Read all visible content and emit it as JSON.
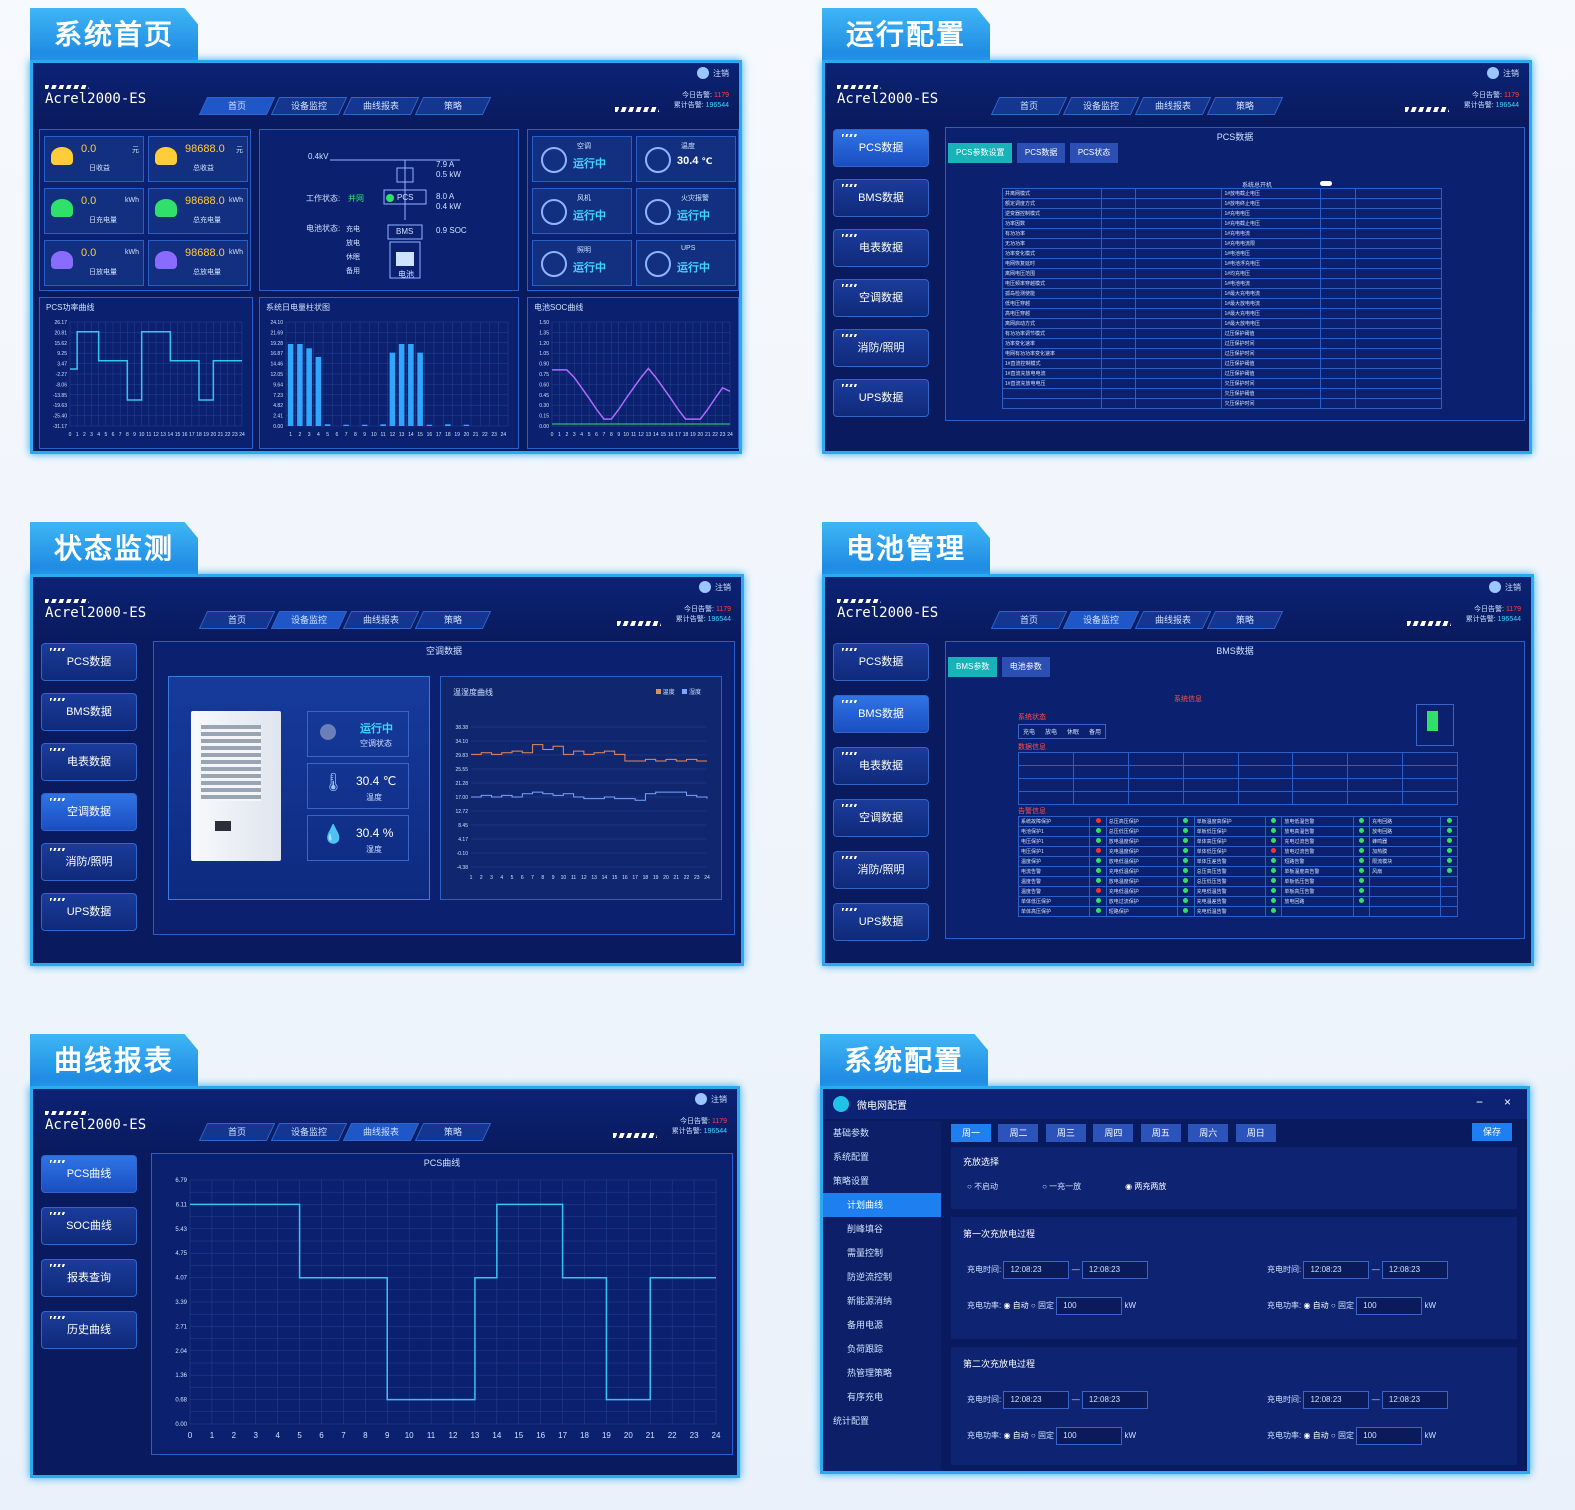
{
  "common": {
    "brand": "Acrel2000-ES",
    "nav": [
      "首页",
      "设备监控",
      "曲线报表",
      "策略"
    ],
    "user": "注销",
    "alarm_today_label": "今日告警:",
    "alarm_today": "1179",
    "alarm_total_label": "累计告警:",
    "alarm_total": "196544",
    "side_menu": [
      "PCS数据",
      "BMS数据",
      "电表数据",
      "空调数据",
      "消防/照明",
      "UPS数据"
    ]
  },
  "s1": {
    "title": "系统首页",
    "stats": [
      {
        "value": "0.0",
        "unit": "元",
        "label": "日收益"
      },
      {
        "value": "98688.0",
        "unit": "元",
        "label": "总收益"
      },
      {
        "value": "0.0",
        "unit": "kWh",
        "label": "日充电量"
      },
      {
        "value": "98688.0",
        "unit": "kWh",
        "label": "总充电量"
      },
      {
        "value": "0.0",
        "unit": "kWh",
        "label": "日放电量"
      },
      {
        "value": "98688.0",
        "unit": "kWh",
        "label": "总放电量"
      }
    ],
    "diagram": {
      "voltage": "0.4kV",
      "work_state_label": "工作状态:",
      "work_state": "并网",
      "pcs": "PCS",
      "battery_state_label": "电池状态:",
      "battery_states": [
        "充电",
        "放电",
        "休眠",
        "备用"
      ],
      "bms": "BMS",
      "battery": "电池",
      "r1": [
        "7.9",
        "A"
      ],
      "r2": [
        "0.5",
        "kW"
      ],
      "r3": [
        "8.0",
        "A"
      ],
      "r4": [
        "0.4",
        "kW"
      ],
      "r5": [
        "0.9",
        "SOC"
      ]
    },
    "devices": [
      {
        "name": "空调",
        "state": "运行中"
      },
      {
        "name": "温度",
        "state": "30.4",
        "unit": "℃"
      },
      {
        "name": "风机",
        "state": "运行中"
      },
      {
        "name": "火灾报警",
        "state": "运行中"
      },
      {
        "name": "照明",
        "state": "运行中"
      },
      {
        "name": "UPS",
        "state": "运行中"
      }
    ],
    "charts": [
      "PCS功率曲线",
      "系统日电量柱状图",
      "电池SOC曲线"
    ]
  },
  "s2": {
    "title": "运行配置",
    "panel": "PCS数据",
    "tabs": [
      "PCS参数设置",
      "PCS数据",
      "PCS状态"
    ],
    "switch_label": "系统总开机",
    "rows_left": [
      "并离网模式",
      "额定调度方式",
      "逆变器控制模式",
      "功率因数",
      "有功功率",
      "无功功率",
      "功率变化模式",
      "电网恢复延时",
      "离网电压范围",
      "电压频率穿越模式",
      "孤岛检测使能",
      "低电压穿越",
      "高电压穿越",
      "离网启动方式",
      "有功功率调节模式",
      "功率变化速率",
      "电网有功功率变化速率",
      "1#直流控制模式",
      "1#直流充放电电流",
      "1#直流充放电电压"
    ],
    "rows_right": [
      "1#放电截止电压",
      "1#放电终止电压",
      "1#充电电压",
      "1#充电截止电压",
      "1#充电电流",
      "1#充电电流限",
      "1#电池电压",
      "1#电池浮充电压",
      "1#均充电压",
      "1#电池电流",
      "1#最大充电电流",
      "1#最大放电电流",
      "1#最大充电电压",
      "1#最大放电电压",
      "过压保护阈值",
      "过压保护时间",
      "过压保护时间",
      "过压保护阈值",
      "过压保护阈值",
      "欠压保护时间",
      "欠压保护阈值",
      "欠压保护时间"
    ]
  },
  "s3": {
    "title": "状态监测",
    "panel": "空调数据",
    "status": "运行中",
    "status_label": "空调状态",
    "temp": "30.4",
    "temp_unit": "℃",
    "temp_label": "温度",
    "hum": "30.4",
    "hum_unit": "%",
    "hum_label": "湿度",
    "chart_title": "温湿度曲线",
    "legend": [
      "温度",
      "湿度"
    ]
  },
  "s4": {
    "title": "电池管理",
    "panel": "BMS数据",
    "tabs": [
      "BMS参数",
      "电池参数"
    ],
    "sys_info": "系统信息",
    "sys_state": "系统状态",
    "data_info": "数据信息",
    "alarm_info": "告警信息",
    "state_items": [
      "充电",
      "放电",
      "休眠",
      "备用"
    ],
    "alarm_cols": [
      [
        "系统故障保护",
        "电池保护1",
        "电压保护1",
        "电压保护1",
        "温度保护",
        "电流告警",
        "温度告警",
        "温度告警",
        "单体低压保护",
        "单体高压保护"
      ],
      [
        "总压高压保护",
        "总压低压保护",
        "放电温度保护",
        "充电温度保护",
        "放电低温保护",
        "充电低温保护",
        "放电温度保护",
        "充电低温保护",
        "放电过流保护",
        "短路保护"
      ],
      [
        "单板温度高保护",
        "单板低压保护",
        "单体高压保护",
        "单体低压保护",
        "单体压差告警",
        "总压高压告警",
        "总压低压告警",
        "充电低温告警",
        "充电温差告警",
        "充电低温告警"
      ],
      [
        "放电低温告警",
        "放电高温告警",
        "充电过流告警",
        "放电过流告警",
        "短路告警",
        "单板温度高告警",
        "单板低压告警",
        "单板高压告警",
        "放电回路"
      ],
      [
        "充电回路",
        "放电回路",
        "蜂鸣器",
        "加热膜",
        "限流模块",
        "风扇"
      ]
    ]
  },
  "s5": {
    "title": "曲线报表",
    "panel": "PCS曲线",
    "side": [
      "PCS曲线",
      "SOC曲线",
      "报表查询",
      "历史曲线"
    ]
  },
  "s6": {
    "title": "系统配置",
    "window_title": "微电网配置",
    "menu": [
      "基础参数",
      "系统配置",
      "策略设置",
      "计划曲线",
      "削峰填谷",
      "需量控制",
      "防逆流控制",
      "新能源消纳",
      "备用电源",
      "负荷跟踪",
      "热管理策略",
      "有序充电",
      "统计配置"
    ],
    "days": [
      "周一",
      "周二",
      "周三",
      "周四",
      "周五",
      "周六",
      "周日"
    ],
    "save": "保存",
    "charge_select": "充放选择",
    "modes": [
      "不启动",
      "一充一放",
      "两充两放"
    ],
    "first": "第一次充放电过程",
    "second": "第二次充放电过程",
    "charge_time": "充电时间:",
    "charge_power": "充电功率:",
    "time_value": "12:08:23",
    "auto": "自动",
    "fixed": "固定",
    "power_value": "100",
    "power_unit": "kW"
  },
  "chart_data": [
    {
      "type": "line",
      "title": "PCS功率曲线",
      "x": [
        0,
        1,
        2,
        3,
        4,
        5,
        6,
        7,
        8,
        9,
        10,
        11,
        12,
        13,
        14,
        15,
        16,
        17,
        18,
        19,
        20,
        21,
        22,
        23,
        24
      ],
      "y": [
        0,
        20.8,
        20.8,
        20.8,
        4.6,
        4.6,
        4.6,
        4.6,
        -17.2,
        -17.2,
        20.8,
        20.8,
        20.8,
        20.8,
        4.6,
        4.6,
        4.6,
        4.6,
        -17.2,
        -17.2,
        4.6,
        4.6,
        4.6,
        4.6,
        4.6
      ],
      "ylim": [
        -31.7,
        26.2
      ],
      "yticks": [
        "26.17",
        "20.81",
        "15.62",
        "9.25",
        "3.47",
        "-2.27",
        "-8.06",
        "-13.85",
        "-19.63",
        "-25.40",
        "-31.17"
      ]
    },
    {
      "type": "bar",
      "title": "系统日电量柱状图",
      "categories": [
        "1",
        "2",
        "3",
        "4",
        "5",
        "6",
        "7",
        "8",
        "9",
        "10",
        "11",
        "12",
        "13",
        "14",
        "15",
        "16",
        "17",
        "18",
        "19",
        "20",
        "21",
        "22",
        "23",
        "24"
      ],
      "values": [
        19,
        19,
        18,
        16,
        0.4,
        0,
        0.3,
        0,
        0.3,
        0,
        0.4,
        17,
        19,
        19,
        17,
        0.3,
        0,
        0.4,
        0,
        0.3,
        0,
        0,
        0,
        0
      ],
      "ylim": [
        0,
        24.1
      ]
    },
    {
      "type": "line",
      "title": "电池SOC曲线",
      "x": [
        0,
        1,
        2,
        3,
        4,
        5,
        6,
        7,
        8,
        9,
        10,
        11,
        12,
        13,
        14,
        15,
        16,
        17,
        18,
        19,
        20,
        21,
        22,
        23,
        24
      ],
      "y": [
        0.81,
        0.81,
        0.81,
        0.7,
        0.55,
        0.4,
        0.24,
        0.1,
        0.1,
        0.24,
        0.4,
        0.55,
        0.7,
        0.83,
        0.7,
        0.55,
        0.4,
        0.24,
        0.1,
        0.1,
        0.1,
        0.24,
        0.4,
        0.55,
        0.5
      ],
      "ylim": [
        0,
        1.5
      ]
    },
    {
      "type": "line",
      "title": "温湿度曲线",
      "x": [
        1,
        2,
        3,
        4,
        5,
        6,
        7,
        8,
        9,
        10,
        11,
        12,
        13,
        14,
        15,
        16,
        17,
        18,
        19,
        20,
        21,
        22,
        23,
        24
      ],
      "series": [
        {
          "name": "温度",
          "values": [
            30.0,
            30.5,
            30.0,
            30.5,
            31.0,
            30.5,
            33.0,
            31.5,
            32.5,
            30.0,
            31.0,
            30.0,
            30.5,
            31.0,
            30.0,
            28.0,
            28.0,
            28.5,
            28.0,
            28.5,
            28.0,
            28.5,
            28.0,
            28.0
          ]
        },
        {
          "name": "湿度",
          "values": [
            17.0,
            17.5,
            17.0,
            17.5,
            17.0,
            18.0,
            18.5,
            18.0,
            17.5,
            18.0,
            17.0,
            16.5,
            16.5,
            17.0,
            16.5,
            16.5,
            16.0,
            18.0,
            18.5,
            18.5,
            18.5,
            17.5,
            17.0,
            16.5
          ]
        }
      ],
      "ylim": [
        -4.38,
        38.38
      ]
    },
    {
      "type": "line",
      "title": "PCS曲线",
      "x": [
        0,
        1,
        2,
        3,
        4,
        5,
        6,
        7,
        8,
        9,
        10,
        11,
        12,
        13,
        14,
        15,
        16,
        17,
        18,
        19,
        20,
        21,
        22,
        23,
        24
      ],
      "y": [
        6.11,
        6.11,
        6.11,
        6.11,
        6.11,
        4.07,
        4.07,
        4.07,
        4.07,
        0.68,
        0.68,
        0.68,
        0.68,
        4.07,
        6.11,
        6.11,
        6.11,
        4.07,
        4.07,
        0.68,
        0.68,
        4.07,
        4.07,
        4.07,
        4.07
      ],
      "ylim": [
        0,
        6.79
      ],
      "yticks": [
        "6.79",
        "6.11",
        "5.43",
        "4.75",
        "4.07",
        "3.39",
        "2.71",
        "2.04",
        "1.36",
        "0.68",
        "0.00"
      ]
    }
  ]
}
